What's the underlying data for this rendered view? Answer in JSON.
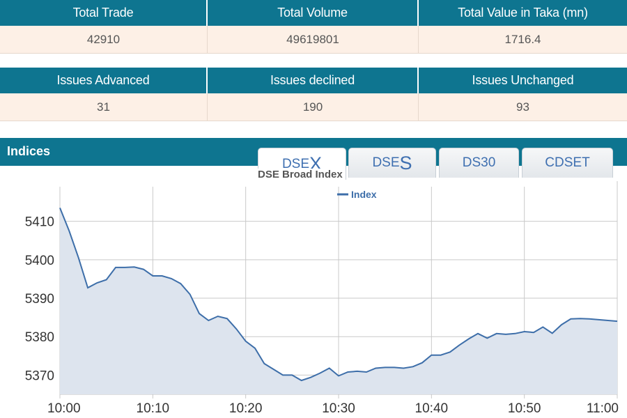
{
  "market_stats": {
    "headers": [
      "Total Trade",
      "Total Volume",
      "Total Value in Taka (mn)"
    ],
    "values": [
      "42910",
      "49619801",
      "1716.4"
    ]
  },
  "issue_stats": {
    "headers": [
      "Issues Advanced",
      "Issues declined",
      "Issues Unchanged"
    ],
    "values": [
      "31",
      "190",
      "93"
    ]
  },
  "indices": {
    "title": "Indices",
    "tabs": [
      {
        "prefix": "DSE",
        "suffix": "X",
        "active": true
      },
      {
        "prefix": "DSE",
        "suffix": "S",
        "active": false
      },
      {
        "label": "DS30",
        "active": false
      },
      {
        "label": "CDSET",
        "active": false
      }
    ]
  },
  "colors": {
    "header_bg": "#0e7590",
    "value_bg": "#fdf0e6",
    "line": "#3d6ea9",
    "area": "#dde4ee"
  },
  "chart_data": {
    "type": "area",
    "title": "DSE Broad Index",
    "legend": "top-center",
    "grid": true,
    "series": [
      {
        "name": "Index",
        "x": [
          "10:00",
          "10:01",
          "10:02",
          "10:03",
          "10:04",
          "10:05",
          "10:06",
          "10:07",
          "10:08",
          "10:09",
          "10:10",
          "10:11",
          "10:12",
          "10:13",
          "10:14",
          "10:15",
          "10:16",
          "10:17",
          "10:18",
          "10:19",
          "10:20",
          "10:21",
          "10:22",
          "10:23",
          "10:24",
          "10:25",
          "10:26",
          "10:27",
          "10:28",
          "10:29",
          "10:30",
          "10:31",
          "10:32",
          "10:33",
          "10:34",
          "10:35",
          "10:36",
          "10:37",
          "10:38",
          "10:39",
          "10:40",
          "10:41",
          "10:42",
          "10:43",
          "10:44",
          "10:45",
          "10:46",
          "10:47",
          "10:48",
          "10:49",
          "10:50",
          "10:51",
          "10:52",
          "10:53",
          "10:54",
          "10:55",
          "10:56",
          "10:57",
          "10:58",
          "10:59",
          "11:00"
        ],
        "values": [
          5413.5,
          5407.5,
          5400.5,
          5392.7,
          5394.0,
          5394.8,
          5398.0,
          5398.0,
          5398.1,
          5397.5,
          5395.8,
          5395.8,
          5395.1,
          5393.8,
          5391.0,
          5386.0,
          5384.2,
          5385.3,
          5384.7,
          5382.0,
          5378.8,
          5377.0,
          5373.0,
          5371.5,
          5370.0,
          5370.0,
          5368.6,
          5369.4,
          5370.5,
          5371.8,
          5369.8,
          5370.8,
          5371.0,
          5370.8,
          5371.8,
          5372.0,
          5372.0,
          5371.8,
          5372.2,
          5373.2,
          5375.2,
          5375.2,
          5376.0,
          5377.8,
          5379.4,
          5380.8,
          5379.6,
          5380.8,
          5380.6,
          5380.8,
          5381.3,
          5381.1,
          5382.5,
          5380.9,
          5383.1,
          5384.6,
          5384.7,
          5384.6,
          5384.4,
          5384.2,
          5384.0
        ]
      }
    ],
    "x_ticks": [
      "10:00",
      "10:10",
      "10:20",
      "10:30",
      "10:40",
      "10:50",
      "11:00"
    ],
    "y_ticks": [
      5370,
      5380,
      5390,
      5400,
      5410
    ],
    "ylim": [
      5365,
      5419
    ]
  }
}
